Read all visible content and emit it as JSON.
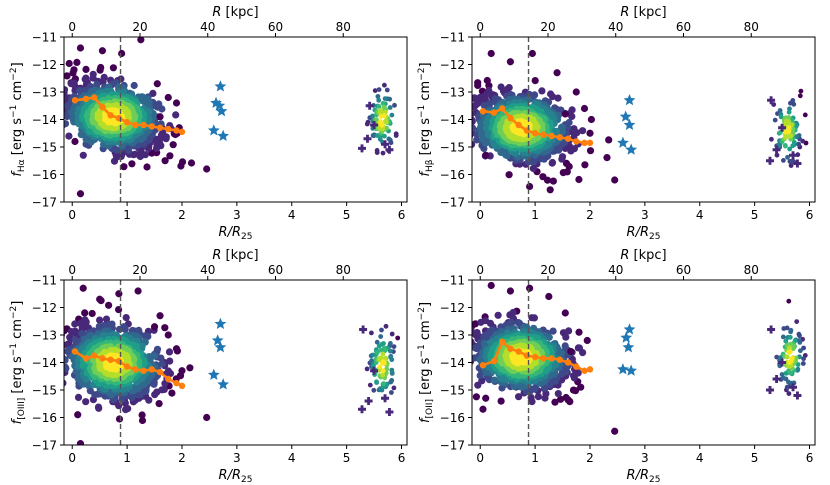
{
  "chart_data": [
    {
      "type": "scatter",
      "id": "ha",
      "xlabel": "R/R25",
      "xlabel_main": "R/R",
      "xlabel_sub": "25",
      "x2label": "R [kpc]",
      "ylabel": "f_Hα [erg s^-1 cm^-2]",
      "ylabel_sym": "f",
      "ylabel_sub": "Hα",
      "ylabel_units": "[erg s",
      "ylabel_units_mid": " cm",
      "ylabel_units_end": "]",
      "xlim": [
        -0.15,
        6.1
      ],
      "ylim": [
        -17,
        -11
      ],
      "xticks": [
        0,
        1,
        2,
        3,
        4,
        5,
        6
      ],
      "yticks": [
        -17,
        -16,
        -15,
        -14,
        -13,
        -12,
        -11
      ],
      "x2ticks": [
        0,
        20,
        40,
        60,
        80
      ],
      "kpc_per_unit": 16.2,
      "vline_x": 0.88,
      "cloud_main": {
        "cx": 0.75,
        "cy": -13.9,
        "sx": 0.42,
        "sy": 0.6,
        "rho": -0.35,
        "n": 1100
      },
      "cloud_far": {
        "cx": 5.65,
        "cy": -14.0,
        "sx": 0.12,
        "sy": 0.55,
        "n": 90
      },
      "outliers": [
        [
          0.15,
          -11.4
        ],
        [
          0.55,
          -11.5
        ],
        [
          0.9,
          -11.6
        ],
        [
          1.25,
          -11.1
        ],
        [
          1.55,
          -12.7
        ],
        [
          1.75,
          -13.2
        ],
        [
          1.9,
          -13.4
        ],
        [
          0.15,
          -16.7
        ],
        [
          2.45,
          -15.8
        ],
        [
          1.6,
          -13.9
        ],
        [
          0.05,
          -14.8
        ],
        [
          1.95,
          -14.3
        ]
      ],
      "stars": [
        [
          2.7,
          -12.8
        ],
        [
          2.62,
          -13.4
        ],
        [
          2.72,
          -13.7
        ],
        [
          2.58,
          -14.4
        ],
        [
          2.75,
          -14.6
        ],
        [
          2.68,
          -13.5
        ]
      ],
      "crosses": [
        [
          5.28,
          -15.05
        ],
        [
          5.38,
          -14.7
        ],
        [
          5.5,
          -14.2
        ],
        [
          5.42,
          -13.5
        ],
        [
          5.78,
          -15.1
        ],
        [
          5.7,
          -14.9
        ]
      ],
      "median": {
        "x": [
          0.05,
          0.25,
          0.4,
          0.55,
          0.7,
          0.85,
          1.0,
          1.15,
          1.3,
          1.45,
          1.6,
          1.75,
          1.9,
          2.0
        ],
        "y": [
          -13.3,
          -13.25,
          -13.2,
          -13.55,
          -13.85,
          -13.95,
          -14.1,
          -14.2,
          -14.2,
          -14.25,
          -14.3,
          -14.35,
          -14.4,
          -14.45
        ]
      }
    },
    {
      "type": "scatter",
      "id": "hb",
      "xlabel": "R/R25",
      "xlabel_main": "R/R",
      "xlabel_sub": "25",
      "x2label": "R [kpc]",
      "ylabel": "f_Hβ [erg s^-1 cm^-2]",
      "ylabel_sym": "f",
      "ylabel_sub": "Hβ",
      "ylabel_units": "[erg s",
      "ylabel_units_mid": " cm",
      "ylabel_units_end": "]",
      "xlim": [
        -0.15,
        6.1
      ],
      "ylim": [
        -17,
        -11
      ],
      "xticks": [
        0,
        1,
        2,
        3,
        4,
        5,
        6
      ],
      "yticks": [
        -17,
        -16,
        -15,
        -14,
        -13,
        -12,
        -11
      ],
      "x2ticks": [
        0,
        20,
        40,
        60,
        80
      ],
      "kpc_per_unit": 16.2,
      "vline_x": 0.88,
      "cloud_main": {
        "cx": 0.75,
        "cy": -14.3,
        "sx": 0.42,
        "sy": 0.6,
        "rho": -0.35,
        "n": 1100
      },
      "cloud_far": {
        "cx": 5.6,
        "cy": -14.4,
        "sx": 0.12,
        "sy": 0.55,
        "n": 90
      },
      "outliers": [
        [
          0.2,
          -11.6
        ],
        [
          0.55,
          -11.9
        ],
        [
          0.95,
          -11.6
        ],
        [
          1.4,
          -12.3
        ],
        [
          1.75,
          -13.0
        ],
        [
          1.9,
          -13.6
        ],
        [
          2.45,
          -16.2
        ],
        [
          0.1,
          -15.3
        ],
        [
          1.55,
          -13.8
        ],
        [
          2.0,
          -14.5
        ]
      ],
      "stars": [
        [
          2.72,
          -13.3
        ],
        [
          2.65,
          -13.9
        ],
        [
          2.72,
          -14.2
        ],
        [
          2.6,
          -14.85
        ],
        [
          2.75,
          -15.1
        ]
      ],
      "crosses": [
        [
          5.3,
          -13.3
        ],
        [
          5.28,
          -15.5
        ],
        [
          5.4,
          -15.1
        ],
        [
          5.5,
          -14.3
        ],
        [
          5.78,
          -15.6
        ],
        [
          5.7,
          -15.3
        ]
      ],
      "median": {
        "x": [
          0.05,
          0.25,
          0.4,
          0.55,
          0.7,
          0.85,
          1.0,
          1.15,
          1.3,
          1.45,
          1.6,
          1.75,
          1.9,
          2.0
        ],
        "y": [
          -13.7,
          -13.75,
          -13.6,
          -13.95,
          -14.2,
          -14.4,
          -14.5,
          -14.55,
          -14.6,
          -14.65,
          -14.7,
          -14.8,
          -14.85,
          -14.85
        ]
      }
    },
    {
      "type": "scatter",
      "id": "oiii",
      "xlabel": "R/R25",
      "xlabel_main": "R/R",
      "xlabel_sub": "25",
      "x2label": "R [kpc]",
      "ylabel": "f_[OIII] [erg s^-1 cm^-2]",
      "ylabel_sym": "f",
      "ylabel_sub": "[OIII]",
      "ylabel_units": "[erg s",
      "ylabel_units_mid": " cm",
      "ylabel_units_end": "]",
      "xlim": [
        -0.15,
        6.1
      ],
      "ylim": [
        -17,
        -11
      ],
      "xticks": [
        0,
        1,
        2,
        3,
        4,
        5,
        6
      ],
      "yticks": [
        -17,
        -16,
        -15,
        -14,
        -13,
        -12,
        -11
      ],
      "x2ticks": [
        0,
        20,
        40,
        60,
        80
      ],
      "kpc_per_unit": 16.2,
      "vline_x": 0.88,
      "cloud_main": {
        "cx": 0.75,
        "cy": -14.0,
        "sx": 0.42,
        "sy": 0.65,
        "rho": -0.3,
        "n": 1100
      },
      "cloud_far": {
        "cx": 5.65,
        "cy": -14.1,
        "sx": 0.12,
        "sy": 0.6,
        "n": 90
      },
      "outliers": [
        [
          0.2,
          -11.3
        ],
        [
          0.5,
          -11.7
        ],
        [
          0.85,
          -11.5
        ],
        [
          1.2,
          -11.4
        ],
        [
          1.5,
          -12.7
        ],
        [
          1.75,
          -13.0
        ],
        [
          1.9,
          -13.5
        ],
        [
          0.15,
          -16.95
        ],
        [
          2.45,
          -16.0
        ],
        [
          0.1,
          -15.9
        ],
        [
          2.0,
          -14.3
        ],
        [
          1.6,
          -12.3
        ]
      ],
      "stars": [
        [
          2.7,
          -12.6
        ],
        [
          2.65,
          -13.2
        ],
        [
          2.7,
          -13.45
        ],
        [
          2.58,
          -14.45
        ],
        [
          2.75,
          -14.8
        ]
      ],
      "crosses": [
        [
          5.3,
          -12.8
        ],
        [
          5.28,
          -15.7
        ],
        [
          5.4,
          -15.4
        ],
        [
          5.5,
          -14.3
        ],
        [
          5.78,
          -15.8
        ],
        [
          5.7,
          -15.3
        ]
      ],
      "median": {
        "x": [
          0.05,
          0.25,
          0.4,
          0.55,
          0.7,
          0.85,
          1.0,
          1.15,
          1.3,
          1.45,
          1.6,
          1.75,
          1.9,
          2.0
        ],
        "y": [
          -13.6,
          -13.85,
          -13.75,
          -13.85,
          -13.9,
          -13.95,
          -14.15,
          -14.25,
          -14.3,
          -14.25,
          -14.35,
          -14.6,
          -14.75,
          -14.85
        ]
      }
    },
    {
      "type": "scatter",
      "id": "oii",
      "xlabel": "R/R25",
      "xlabel_main": "R/R",
      "xlabel_sub": "25",
      "x2label": "R [kpc]",
      "ylabel": "f_[OII] [erg s^-1 cm^-2]",
      "ylabel_sym": "f",
      "ylabel_sub": "[OII]",
      "ylabel_units": "[erg s",
      "ylabel_units_mid": " cm",
      "ylabel_units_end": "]",
      "xlim": [
        -0.15,
        6.1
      ],
      "ylim": [
        -17,
        -11
      ],
      "xticks": [
        0,
        1,
        2,
        3,
        4,
        5,
        6
      ],
      "yticks": [
        -17,
        -16,
        -15,
        -14,
        -13,
        -12,
        -11
      ],
      "x2ticks": [
        0,
        20,
        40,
        60,
        80
      ],
      "kpc_per_unit": 16.2,
      "vline_x": 0.88,
      "cloud_main": {
        "cx": 0.75,
        "cy": -13.8,
        "sx": 0.42,
        "sy": 0.6,
        "rho": -0.3,
        "n": 1100
      },
      "cloud_far": {
        "cx": 5.65,
        "cy": -13.8,
        "sx": 0.12,
        "sy": 0.55,
        "n": 90
      },
      "outliers": [
        [
          0.2,
          -11.2
        ],
        [
          0.55,
          -11.4
        ],
        [
          0.9,
          -11.3
        ],
        [
          1.25,
          -11.6
        ],
        [
          1.55,
          -12.2
        ],
        [
          1.8,
          -12.9
        ],
        [
          1.95,
          -13.2
        ],
        [
          0.05,
          -15.7
        ],
        [
          2.45,
          -16.5
        ],
        [
          0.1,
          -15.3
        ],
        [
          1.65,
          -13.6
        ]
      ],
      "stars": [
        [
          2.72,
          -12.8
        ],
        [
          2.66,
          -13.1
        ],
        [
          2.7,
          -13.45
        ],
        [
          2.6,
          -14.25
        ],
        [
          2.75,
          -14.3
        ]
      ],
      "crosses": [
        [
          5.3,
          -12.8
        ],
        [
          5.28,
          -15.0
        ],
        [
          5.4,
          -14.6
        ],
        [
          5.5,
          -14.0
        ],
        [
          5.78,
          -15.2
        ],
        [
          5.7,
          -14.9
        ]
      ],
      "median": {
        "x": [
          0.05,
          0.25,
          0.4,
          0.55,
          0.7,
          0.85,
          1.0,
          1.15,
          1.3,
          1.45,
          1.6,
          1.75,
          1.9,
          2.0
        ],
        "y": [
          -14.1,
          -13.95,
          -13.25,
          -13.5,
          -13.6,
          -13.75,
          -13.8,
          -13.85,
          -13.85,
          -13.9,
          -14.0,
          -14.15,
          -14.3,
          -14.25
        ]
      }
    }
  ],
  "colors": {
    "median": "#ff7f0e",
    "star": "#1f77b4",
    "vline": "#555555",
    "viridis": [
      "#440154",
      "#482878",
      "#3e4989",
      "#31688e",
      "#26828e",
      "#1f9e89",
      "#35b779",
      "#6ece58",
      "#b5de2b",
      "#fde725"
    ]
  }
}
